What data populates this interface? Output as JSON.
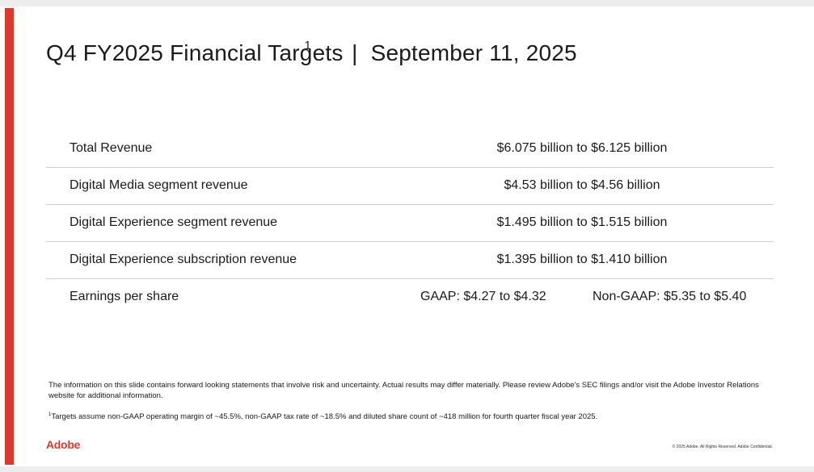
{
  "slide": {
    "title": "Q4 FY2025 Financial Targets",
    "title_superscript": "1",
    "separator": "|",
    "date": "September 11, 2025"
  },
  "targets": [
    {
      "label": "Total Revenue",
      "value": "$6.075 billion to $6.125 billion"
    },
    {
      "label": "Digital Media segment revenue",
      "value": "$4.53 billion to $4.56 billion"
    },
    {
      "label": "Digital Experience segment revenue",
      "value": "$1.495 billion to $1.515 billion"
    },
    {
      "label": "Digital Experience subscription revenue",
      "value": "$1.395 billion to $1.410 billion"
    }
  ],
  "eps": {
    "label": "Earnings per share",
    "gaap": "GAAP: $4.27 to $4.32",
    "non_gaap": "Non-GAAP: $5.35 to $5.40"
  },
  "disclaimer": "The information on this slide contains forward looking statements that involve risk and uncertainty. Actual results may differ materially. Please review Adobe's SEC filings and/or visit the Adobe Investor Relations website for additional information.",
  "footnote": {
    "marker": "1",
    "text": "Targets assume non-GAAP operating margin of ~45.5%, non-GAAP tax rate of ~18.5% and diluted share count of ~418 million for fourth quarter fiscal year 2025."
  },
  "brand": {
    "logo_text": "Adobe",
    "accent_color": "#d93a2b"
  },
  "copyright": "© 2025 Adobe. All Rights Reserved. Adobe Confidential."
}
